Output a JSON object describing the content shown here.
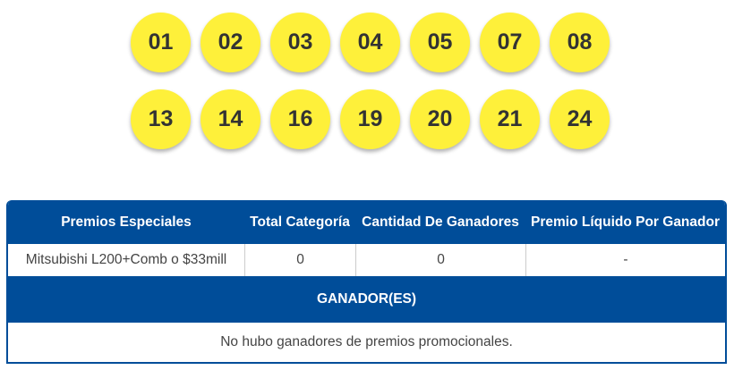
{
  "balls": [
    [
      "01",
      "02",
      "03",
      "04",
      "05",
      "07",
      "08"
    ],
    [
      "13",
      "14",
      "16",
      "19",
      "20",
      "21",
      "24"
    ]
  ],
  "colors": {
    "ball": "#fef03a",
    "header": "#004d99"
  },
  "table": {
    "headers": [
      "Premios Especiales",
      "Total Categoría",
      "Cantidad De Ganadores",
      "Premio Líquido Por Ganador"
    ],
    "row": [
      "Mitsubishi L200+Comb o $33mill",
      "0",
      "0",
      "-"
    ],
    "winners_title": "GANADOR(ES)",
    "winners_message": "No hubo ganadores de premios promocionales."
  }
}
